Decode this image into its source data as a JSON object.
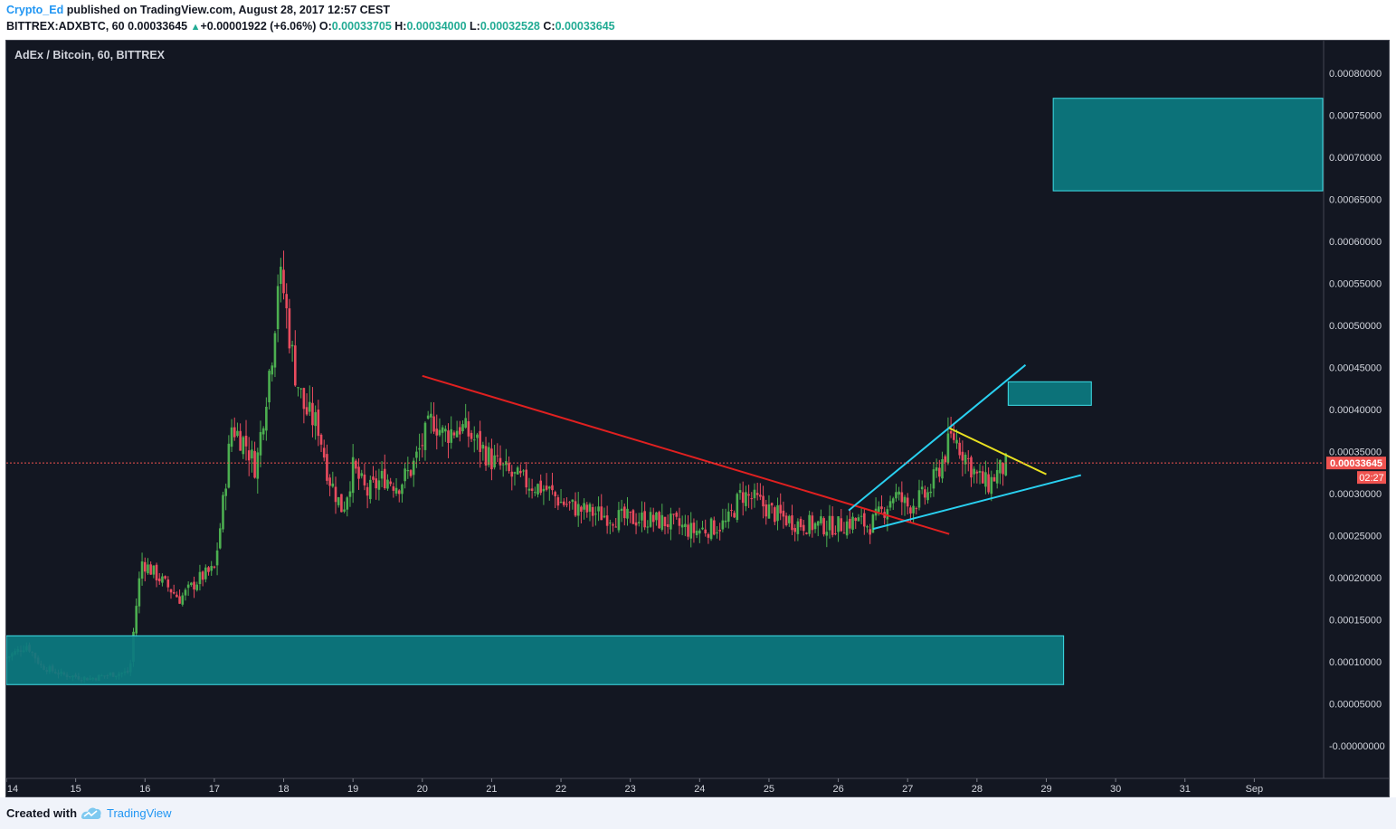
{
  "header": {
    "author": "Crypto_Ed",
    "published": "published on TradingView.com, August 28, 2017 12:57 CEST",
    "symbol": "BITTREX:ADXBTC, 60",
    "last": "0.00033645",
    "change": "+0.00001922 (+6.06%)",
    "o_label": "O:",
    "o": "0.00033705",
    "h_label": "H:",
    "h": "0.00034000",
    "l_label": "L:",
    "l": "0.00032528",
    "c_label": "C:",
    "c": "0.00033645"
  },
  "chart_title": "AdEx / Bitcoin, 60, BITTREX",
  "price_tag": {
    "value": "0.00033645",
    "countdown": "02:27"
  },
  "footer": {
    "created": "Created with",
    "brand": "TradingView"
  },
  "colors": {
    "background": "#131722",
    "zone_fill": "#0c7a80",
    "zone_stroke": "#3ee0ea",
    "trend_red": "#e02020",
    "trend_cyan": "#29d0f0",
    "trend_yellow": "#e8e020",
    "candle_up": "#4caf50",
    "candle_down": "#e94b5e",
    "price_tag": "#ef5350"
  },
  "chart_data": {
    "type": "candlestick",
    "title": "AdEx / Bitcoin, 60, BITTREX",
    "x_ticks": [
      "14",
      "15",
      "16",
      "17",
      "18",
      "19",
      "20",
      "21",
      "22",
      "23",
      "24",
      "25",
      "26",
      "27",
      "28",
      "29",
      "30",
      "31",
      "Sep"
    ],
    "x_tick_dates": [
      14,
      15,
      16,
      17,
      18,
      19,
      20,
      21,
      22,
      23,
      24,
      25,
      26,
      27,
      28,
      29,
      30,
      31,
      32
    ],
    "x_range": [
      14.0,
      33.0
    ],
    "y_ticks": [
      "0.00080000",
      "0.00075000",
      "0.00070000",
      "0.00065000",
      "0.00060000",
      "0.00055000",
      "0.00050000",
      "0.00045000",
      "0.00040000",
      "0.00035000",
      "0.00030000",
      "0.00025000",
      "0.00020000",
      "0.00015000",
      "0.00010000",
      "0.00005000",
      "-0.00000000"
    ],
    "y_tick_values": [
      0.0008,
      0.00075,
      0.0007,
      0.00065,
      0.0006,
      0.00055,
      0.0005,
      0.00045,
      0.0004,
      0.00035,
      0.0003,
      0.00025,
      0.0002,
      0.00015,
      0.0001,
      5e-05,
      0
    ],
    "y_range": [
      -3.85e-05,
      0.0008385
    ],
    "last_price": 0.00033645,
    "anchors": [
      [
        14.0,
        0.000105
      ],
      [
        14.3,
        0.00012
      ],
      [
        14.5,
        9.5e-05
      ],
      [
        14.8,
        8.5e-05
      ],
      [
        15.2,
        8e-05
      ],
      [
        15.5,
        8.5e-05
      ],
      [
        15.78,
        8.8e-05
      ],
      [
        15.85,
        0.00015
      ],
      [
        15.95,
        0.00022
      ],
      [
        16.2,
        0.0002
      ],
      [
        16.5,
        0.000175
      ],
      [
        16.8,
        0.0002
      ],
      [
        17.0,
        0.00021
      ],
      [
        17.1,
        0.00027
      ],
      [
        17.25,
        0.00038
      ],
      [
        17.45,
        0.00036
      ],
      [
        17.6,
        0.00033
      ],
      [
        17.75,
        0.00042
      ],
      [
        17.85,
        0.00048
      ],
      [
        17.92,
        0.00056
      ],
      [
        18.0,
        0.00054
      ],
      [
        18.15,
        0.00045
      ],
      [
        18.3,
        0.0004
      ],
      [
        18.5,
        0.00038
      ],
      [
        18.65,
        0.00032
      ],
      [
        18.85,
        0.00028
      ],
      [
        19.0,
        0.00033
      ],
      [
        19.2,
        0.0003
      ],
      [
        19.45,
        0.00032
      ],
      [
        19.65,
        0.00031
      ],
      [
        19.85,
        0.00033
      ],
      [
        20.0,
        0.00036
      ],
      [
        20.15,
        0.00039
      ],
      [
        20.3,
        0.00037
      ],
      [
        20.55,
        0.00038
      ],
      [
        20.8,
        0.00036
      ],
      [
        21.0,
        0.00034
      ],
      [
        21.3,
        0.00032
      ],
      [
        21.6,
        0.00031
      ],
      [
        21.8,
        0.000305
      ],
      [
        22.0,
        0.00029
      ],
      [
        22.3,
        0.00028
      ],
      [
        22.6,
        0.000275
      ],
      [
        22.9,
        0.00027
      ],
      [
        23.2,
        0.00027
      ],
      [
        23.6,
        0.000265
      ],
      [
        23.9,
        0.000255
      ],
      [
        24.2,
        0.00026
      ],
      [
        24.4,
        0.000265
      ],
      [
        24.6,
        0.0003
      ],
      [
        24.85,
        0.00029
      ],
      [
        25.1,
        0.000275
      ],
      [
        25.4,
        0.000265
      ],
      [
        25.7,
        0.000262
      ],
      [
        26.0,
        0.000262
      ],
      [
        26.25,
        0.000268
      ],
      [
        26.45,
        0.000262
      ],
      [
        26.65,
        0.00028
      ],
      [
        26.8,
        0.0003
      ],
      [
        27.0,
        0.000285
      ],
      [
        27.3,
        0.0003
      ],
      [
        27.5,
        0.00034
      ],
      [
        27.65,
        0.00037
      ],
      [
        27.8,
        0.00035
      ],
      [
        28.0,
        0.00032
      ],
      [
        28.15,
        0.00031
      ],
      [
        28.3,
        0.000325
      ],
      [
        28.45,
        0.000336
      ]
    ],
    "zones": [
      {
        "x": [
          14.0,
          29.25
        ],
        "y": [
          7.3e-05,
          0.000131
        ]
      },
      {
        "x": [
          29.1,
          33.0
        ],
        "y": [
          0.00066,
          0.00077
        ]
      },
      {
        "x": [
          28.45,
          29.65
        ],
        "y": [
          0.000405,
          0.000433
        ]
      }
    ],
    "trend_lines": [
      {
        "color": "red",
        "from": [
          20.0,
          0.00044
        ],
        "to": [
          27.6,
          0.000252
        ]
      },
      {
        "color": "cyan",
        "from": [
          26.15,
          0.00028
        ],
        "to": [
          28.7,
          0.000453
        ]
      },
      {
        "color": "cyan",
        "from": [
          26.5,
          0.000258
        ],
        "to": [
          29.5,
          0.000322
        ]
      },
      {
        "color": "yellow",
        "from": [
          27.6,
          0.000378
        ],
        "to": [
          29.0,
          0.000323
        ]
      }
    ]
  }
}
